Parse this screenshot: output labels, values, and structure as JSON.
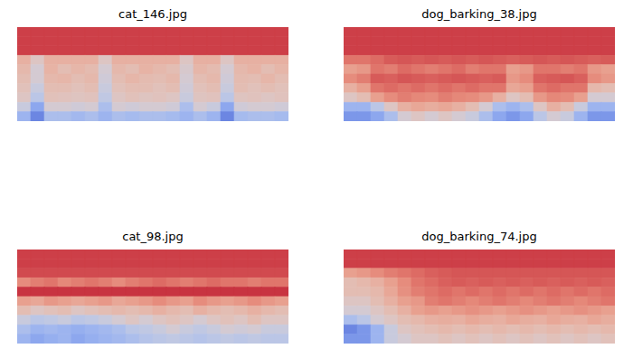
{
  "chart_data": [
    {
      "type": "heatmap",
      "title": "cat_146.jpg",
      "tick_labels": false,
      "zlim": [
        0,
        1
      ],
      "cells": [
        [
          0.9,
          0.9,
          0.9,
          0.9,
          0.9,
          0.9,
          0.9,
          0.9,
          0.9,
          0.9,
          0.9,
          0.9,
          0.9,
          0.9,
          0.9,
          0.9,
          0.9,
          0.9,
          0.9,
          0.9
        ],
        [
          0.9,
          0.9,
          0.9,
          0.9,
          0.9,
          0.9,
          0.9,
          0.9,
          0.9,
          0.9,
          0.9,
          0.9,
          0.9,
          0.9,
          0.9,
          0.9,
          0.9,
          0.9,
          0.9,
          0.9
        ],
        [
          0.9,
          0.9,
          0.9,
          0.9,
          0.9,
          0.9,
          0.9,
          0.9,
          0.9,
          0.9,
          0.9,
          0.9,
          0.9,
          0.9,
          0.9,
          0.9,
          0.9,
          0.9,
          0.9,
          0.9
        ],
        [
          0.65,
          0.55,
          0.65,
          0.65,
          0.65,
          0.65,
          0.55,
          0.65,
          0.65,
          0.65,
          0.65,
          0.65,
          0.55,
          0.65,
          0.65,
          0.55,
          0.65,
          0.65,
          0.65,
          0.65
        ],
        [
          0.62,
          0.5,
          0.64,
          0.6,
          0.63,
          0.61,
          0.5,
          0.62,
          0.6,
          0.64,
          0.62,
          0.6,
          0.52,
          0.63,
          0.61,
          0.5,
          0.62,
          0.64,
          0.6,
          0.63
        ],
        [
          0.6,
          0.5,
          0.62,
          0.63,
          0.6,
          0.62,
          0.48,
          0.6,
          0.63,
          0.61,
          0.6,
          0.62,
          0.5,
          0.6,
          0.62,
          0.48,
          0.61,
          0.6,
          0.63,
          0.6
        ],
        [
          0.58,
          0.45,
          0.6,
          0.6,
          0.58,
          0.6,
          0.45,
          0.58,
          0.6,
          0.6,
          0.58,
          0.6,
          0.48,
          0.58,
          0.6,
          0.45,
          0.6,
          0.58,
          0.6,
          0.58
        ],
        [
          0.55,
          0.4,
          0.58,
          0.57,
          0.56,
          0.57,
          0.42,
          0.55,
          0.58,
          0.56,
          0.57,
          0.55,
          0.45,
          0.56,
          0.57,
          0.4,
          0.56,
          0.57,
          0.55,
          0.57
        ],
        [
          0.45,
          0.25,
          0.5,
          0.5,
          0.48,
          0.5,
          0.35,
          0.5,
          0.48,
          0.5,
          0.5,
          0.48,
          0.35,
          0.5,
          0.45,
          0.25,
          0.48,
          0.5,
          0.5,
          0.48
        ],
        [
          0.3,
          0.15,
          0.35,
          0.35,
          0.32,
          0.35,
          0.3,
          0.35,
          0.33,
          0.35,
          0.35,
          0.33,
          0.3,
          0.35,
          0.3,
          0.15,
          0.33,
          0.35,
          0.35,
          0.33
        ]
      ]
    },
    {
      "type": "heatmap",
      "title": "dog_barking_38.jpg",
      "tick_labels": false,
      "zlim": [
        0,
        1
      ],
      "cells": [
        [
          0.9,
          0.9,
          0.9,
          0.9,
          0.9,
          0.9,
          0.9,
          0.9,
          0.9,
          0.9,
          0.9,
          0.9,
          0.9,
          0.9,
          0.9,
          0.9,
          0.9,
          0.9,
          0.9,
          0.9
        ],
        [
          0.9,
          0.9,
          0.9,
          0.9,
          0.9,
          0.9,
          0.9,
          0.9,
          0.9,
          0.9,
          0.9,
          0.9,
          0.9,
          0.9,
          0.9,
          0.9,
          0.9,
          0.9,
          0.9,
          0.9
        ],
        [
          0.9,
          0.9,
          0.9,
          0.9,
          0.9,
          0.9,
          0.9,
          0.9,
          0.9,
          0.9,
          0.9,
          0.9,
          0.9,
          0.9,
          0.9,
          0.9,
          0.9,
          0.9,
          0.9,
          0.9
        ],
        [
          0.8,
          0.8,
          0.82,
          0.85,
          0.86,
          0.85,
          0.86,
          0.85,
          0.86,
          0.85,
          0.86,
          0.85,
          0.84,
          0.85,
          0.86,
          0.85,
          0.86,
          0.85,
          0.84,
          0.85
        ],
        [
          0.7,
          0.72,
          0.8,
          0.78,
          0.82,
          0.8,
          0.78,
          0.8,
          0.82,
          0.78,
          0.8,
          0.8,
          0.7,
          0.72,
          0.8,
          0.8,
          0.78,
          0.8,
          0.72,
          0.7
        ],
        [
          0.75,
          0.78,
          0.85,
          0.84,
          0.86,
          0.85,
          0.84,
          0.85,
          0.86,
          0.85,
          0.84,
          0.85,
          0.72,
          0.75,
          0.84,
          0.85,
          0.86,
          0.84,
          0.75,
          0.72
        ],
        [
          0.65,
          0.7,
          0.8,
          0.82,
          0.8,
          0.82,
          0.8,
          0.82,
          0.8,
          0.82,
          0.8,
          0.8,
          0.68,
          0.7,
          0.8,
          0.82,
          0.8,
          0.8,
          0.62,
          0.6
        ],
        [
          0.55,
          0.6,
          0.7,
          0.75,
          0.78,
          0.76,
          0.75,
          0.78,
          0.76,
          0.75,
          0.72,
          0.65,
          0.55,
          0.6,
          0.72,
          0.76,
          0.75,
          0.7,
          0.5,
          0.5
        ],
        [
          0.3,
          0.3,
          0.4,
          0.55,
          0.65,
          0.68,
          0.66,
          0.68,
          0.65,
          0.6,
          0.5,
          0.35,
          0.3,
          0.35,
          0.55,
          0.65,
          0.6,
          0.45,
          0.3,
          0.3
        ],
        [
          0.2,
          0.2,
          0.25,
          0.35,
          0.5,
          0.55,
          0.5,
          0.55,
          0.5,
          0.45,
          0.35,
          0.25,
          0.2,
          0.25,
          0.4,
          0.5,
          0.45,
          0.3,
          0.2,
          0.2
        ]
      ]
    },
    {
      "type": "heatmap",
      "title": "cat_98.jpg",
      "tick_labels": false,
      "zlim": [
        0,
        1
      ],
      "cells": [
        [
          0.9,
          0.9,
          0.9,
          0.9,
          0.9,
          0.9,
          0.9,
          0.9,
          0.9,
          0.9,
          0.9,
          0.9,
          0.9,
          0.9,
          0.9,
          0.9,
          0.9,
          0.9,
          0.9,
          0.9
        ],
        [
          0.9,
          0.9,
          0.9,
          0.9,
          0.9,
          0.9,
          0.9,
          0.9,
          0.9,
          0.9,
          0.9,
          0.9,
          0.9,
          0.9,
          0.9,
          0.9,
          0.9,
          0.9,
          0.9,
          0.9
        ],
        [
          0.88,
          0.88,
          0.88,
          0.88,
          0.88,
          0.88,
          0.88,
          0.88,
          0.88,
          0.88,
          0.88,
          0.88,
          0.88,
          0.88,
          0.88,
          0.88,
          0.88,
          0.88,
          0.88,
          0.88
        ],
        [
          0.75,
          0.78,
          0.8,
          0.76,
          0.78,
          0.8,
          0.78,
          0.75,
          0.78,
          0.8,
          0.82,
          0.8,
          0.78,
          0.8,
          0.82,
          0.8,
          0.8,
          0.78,
          0.8,
          0.8
        ],
        [
          0.92,
          0.92,
          0.92,
          0.92,
          0.92,
          0.92,
          0.92,
          0.92,
          0.92,
          0.92,
          0.92,
          0.92,
          0.92,
          0.92,
          0.92,
          0.92,
          0.92,
          0.92,
          0.92,
          0.92
        ],
        [
          0.7,
          0.68,
          0.72,
          0.7,
          0.68,
          0.7,
          0.72,
          0.68,
          0.7,
          0.72,
          0.75,
          0.72,
          0.7,
          0.75,
          0.72,
          0.7,
          0.72,
          0.75,
          0.72,
          0.7
        ],
        [
          0.6,
          0.55,
          0.58,
          0.6,
          0.55,
          0.58,
          0.6,
          0.62,
          0.6,
          0.62,
          0.65,
          0.62,
          0.6,
          0.65,
          0.62,
          0.6,
          0.62,
          0.65,
          0.62,
          0.6
        ],
        [
          0.45,
          0.4,
          0.42,
          0.45,
          0.4,
          0.42,
          0.45,
          0.5,
          0.55,
          0.5,
          0.55,
          0.58,
          0.55,
          0.5,
          0.55,
          0.58,
          0.55,
          0.6,
          0.55,
          0.55
        ],
        [
          0.35,
          0.3,
          0.32,
          0.3,
          0.28,
          0.3,
          0.32,
          0.35,
          0.4,
          0.42,
          0.45,
          0.5,
          0.45,
          0.42,
          0.45,
          0.5,
          0.48,
          0.5,
          0.45,
          0.45
        ],
        [
          0.3,
          0.25,
          0.28,
          0.3,
          0.25,
          0.28,
          0.3,
          0.32,
          0.35,
          0.38,
          0.4,
          0.42,
          0.4,
          0.38,
          0.4,
          0.42,
          0.4,
          0.42,
          0.4,
          0.4
        ]
      ]
    },
    {
      "type": "heatmap",
      "title": "dog_barking_74.jpg",
      "tick_labels": false,
      "zlim": [
        0,
        1
      ],
      "cells": [
        [
          0.9,
          0.9,
          0.9,
          0.9,
          0.9,
          0.9,
          0.9,
          0.9,
          0.9,
          0.9,
          0.9,
          0.9,
          0.9,
          0.9,
          0.9,
          0.9,
          0.9,
          0.9,
          0.9,
          0.9
        ],
        [
          0.9,
          0.9,
          0.9,
          0.9,
          0.9,
          0.9,
          0.9,
          0.9,
          0.9,
          0.9,
          0.9,
          0.9,
          0.9,
          0.9,
          0.9,
          0.9,
          0.9,
          0.9,
          0.9,
          0.9
        ],
        [
          0.7,
          0.72,
          0.75,
          0.78,
          0.8,
          0.82,
          0.84,
          0.85,
          0.86,
          0.86,
          0.86,
          0.86,
          0.86,
          0.86,
          0.86,
          0.86,
          0.86,
          0.86,
          0.86,
          0.86
        ],
        [
          0.6,
          0.62,
          0.65,
          0.7,
          0.75,
          0.8,
          0.82,
          0.84,
          0.85,
          0.84,
          0.85,
          0.84,
          0.85,
          0.84,
          0.85,
          0.84,
          0.85,
          0.84,
          0.85,
          0.84
        ],
        [
          0.6,
          0.6,
          0.62,
          0.68,
          0.74,
          0.78,
          0.8,
          0.82,
          0.8,
          0.82,
          0.8,
          0.82,
          0.8,
          0.82,
          0.8,
          0.82,
          0.8,
          0.82,
          0.8,
          0.82
        ],
        [
          0.55,
          0.55,
          0.6,
          0.65,
          0.7,
          0.72,
          0.78,
          0.8,
          0.78,
          0.76,
          0.78,
          0.8,
          0.78,
          0.76,
          0.78,
          0.8,
          0.78,
          0.76,
          0.78,
          0.8
        ],
        [
          0.5,
          0.5,
          0.55,
          0.6,
          0.65,
          0.7,
          0.72,
          0.7,
          0.72,
          0.74,
          0.72,
          0.7,
          0.72,
          0.74,
          0.72,
          0.7,
          0.72,
          0.74,
          0.72,
          0.7
        ],
        [
          0.35,
          0.4,
          0.5,
          0.55,
          0.6,
          0.62,
          0.65,
          0.66,
          0.65,
          0.68,
          0.66,
          0.65,
          0.68,
          0.66,
          0.65,
          0.68,
          0.66,
          0.65,
          0.68,
          0.66
        ],
        [
          0.15,
          0.2,
          0.3,
          0.45,
          0.55,
          0.58,
          0.6,
          0.62,
          0.6,
          0.62,
          0.6,
          0.62,
          0.6,
          0.62,
          0.6,
          0.62,
          0.6,
          0.62,
          0.6,
          0.62
        ],
        [
          0.2,
          0.2,
          0.3,
          0.45,
          0.5,
          0.55,
          0.55,
          0.58,
          0.55,
          0.58,
          0.55,
          0.58,
          0.55,
          0.58,
          0.55,
          0.58,
          0.55,
          0.58,
          0.55,
          0.58
        ]
      ]
    }
  ]
}
